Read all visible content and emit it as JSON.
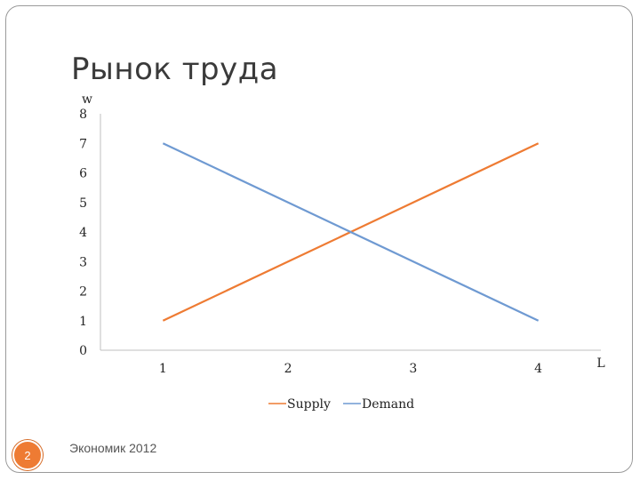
{
  "slide": {
    "title": "Рынок труда",
    "page_number": "2",
    "footer": "Экономик 2012"
  },
  "chart_data": {
    "type": "line",
    "x": [
      1,
      2,
      3,
      4
    ],
    "xlabel": "L",
    "ylabel": "w",
    "ylim": [
      0,
      8
    ],
    "yticks": [
      0,
      1,
      2,
      3,
      4,
      5,
      6,
      7,
      8
    ],
    "grid": false,
    "legend": "bottom",
    "series": [
      {
        "name": "Supply",
        "values": [
          1,
          3,
          5,
          7
        ],
        "color": "#ee7b33"
      },
      {
        "name": "Demand",
        "values": [
          7,
          5,
          3,
          1
        ],
        "color": "#6f9ad2"
      }
    ]
  }
}
